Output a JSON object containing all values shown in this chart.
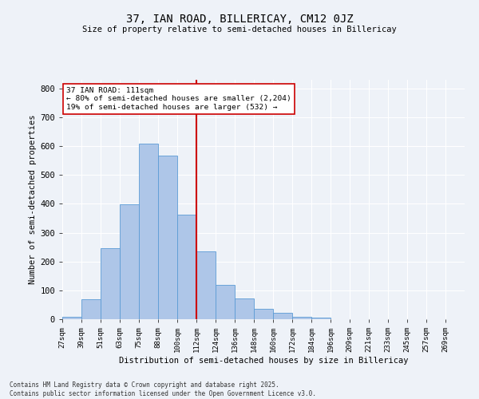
{
  "title": "37, IAN ROAD, BILLERICAY, CM12 0JZ",
  "subtitle": "Size of property relative to semi-detached houses in Billericay",
  "xlabel": "Distribution of semi-detached houses by size in Billericay",
  "ylabel": "Number of semi-detached properties",
  "bin_labels": [
    "27sqm",
    "39sqm",
    "51sqm",
    "63sqm",
    "75sqm",
    "88sqm",
    "100sqm",
    "112sqm",
    "124sqm",
    "136sqm",
    "148sqm",
    "160sqm",
    "172sqm",
    "184sqm",
    "196sqm",
    "209sqm",
    "221sqm",
    "233sqm",
    "245sqm",
    "257sqm",
    "269sqm"
  ],
  "bar_heights": [
    8,
    68,
    247,
    398,
    610,
    568,
    363,
    235,
    120,
    73,
    36,
    22,
    8,
    5,
    1,
    0,
    0,
    0,
    0,
    0,
    0
  ],
  "bar_color": "#aec6e8",
  "bar_edge_color": "#5b9bd5",
  "vline_x": 7,
  "vline_color": "#cc0000",
  "annotation_title": "37 IAN ROAD: 111sqm",
  "annotation_line1": "← 80% of semi-detached houses are smaller (2,204)",
  "annotation_line2": "19% of semi-detached houses are larger (532) →",
  "ylim": [
    0,
    830
  ],
  "yticks": [
    0,
    100,
    200,
    300,
    400,
    500,
    600,
    700,
    800
  ],
  "footnote_line1": "Contains HM Land Registry data © Crown copyright and database right 2025.",
  "footnote_line2": "Contains public sector information licensed under the Open Government Licence v3.0.",
  "background_color": "#eef2f8",
  "grid_color": "#ffffff"
}
